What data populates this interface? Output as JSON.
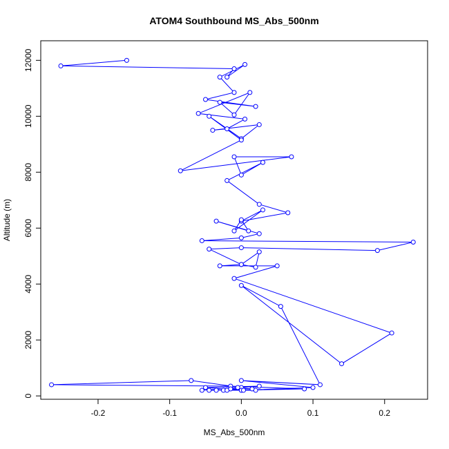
{
  "chart_data": {
    "type": "line",
    "title": "ATOM4 Southbound MS_Abs_500nm",
    "xlabel": "MS_Abs_500nm",
    "ylabel": "Altitude (m)",
    "xlim": [
      -0.28,
      0.26
    ],
    "ylim": [
      -120,
      12700
    ],
    "xticks": [
      -0.2,
      -0.1,
      0.0,
      0.1,
      0.2
    ],
    "xtick_labels": [
      "-0.2",
      "-0.1",
      "0.0",
      "0.1",
      "0.2"
    ],
    "yticks": [
      0,
      2000,
      4000,
      6000,
      8000,
      10000,
      12000
    ],
    "ytick_labels": [
      "0",
      "2000",
      "4000",
      "6000",
      "8000",
      "10000",
      "12000"
    ],
    "grid": false,
    "series": [
      {
        "color": "#0000ff",
        "marker": "open-circle",
        "x": [
          -0.16,
          -0.252,
          -0.01,
          -0.02,
          0.005,
          -0.03,
          -0.01,
          -0.05,
          0.02,
          -0.03,
          -0.01,
          0.012,
          -0.06,
          0.005,
          -0.02,
          -0.04,
          0.025,
          0.0,
          -0.045,
          0.0,
          -0.085,
          0.07,
          -0.01,
          0.0,
          0.03,
          -0.02,
          0.025,
          0.065,
          0.0,
          0.03,
          -0.01,
          0.0,
          0.01,
          -0.035,
          0.025,
          0.0,
          -0.055,
          0.24,
          0.19,
          0.0,
          -0.045,
          0.0,
          0.025,
          0.02,
          0.0,
          -0.03,
          0.05,
          -0.01,
          0.21,
          0.14,
          0.0,
          0.055,
          0.11,
          0.0,
          0.1,
          0.0,
          0.088,
          -0.015,
          -0.265,
          -0.07,
          0.0,
          -0.055,
          0.025,
          -0.05,
          0.0,
          -0.045,
          -0.025,
          -0.035,
          0.02,
          -0.02,
          0.003,
          -0.015,
          0.015,
          -0.005
        ],
        "y": [
          12000,
          11800,
          11700,
          11400,
          11850,
          11400,
          10850,
          10600,
          10350,
          10500,
          10050,
          10850,
          10100,
          9900,
          9550,
          9500,
          9700,
          9200,
          10000,
          9150,
          8050,
          8550,
          8550,
          7900,
          8350,
          7700,
          6850,
          6550,
          6250,
          6650,
          5900,
          6300,
          5900,
          6250,
          5800,
          5650,
          5550,
          5500,
          5200,
          5300,
          5250,
          4700,
          5150,
          4600,
          4700,
          4650,
          4650,
          4200,
          2250,
          1150,
          3950,
          3200,
          400,
          550,
          300,
          200,
          250,
          350,
          400,
          550,
          300,
          200,
          350,
          300,
          200,
          200,
          200,
          200,
          200,
          200,
          200,
          250,
          250,
          300
        ]
      }
    ]
  }
}
